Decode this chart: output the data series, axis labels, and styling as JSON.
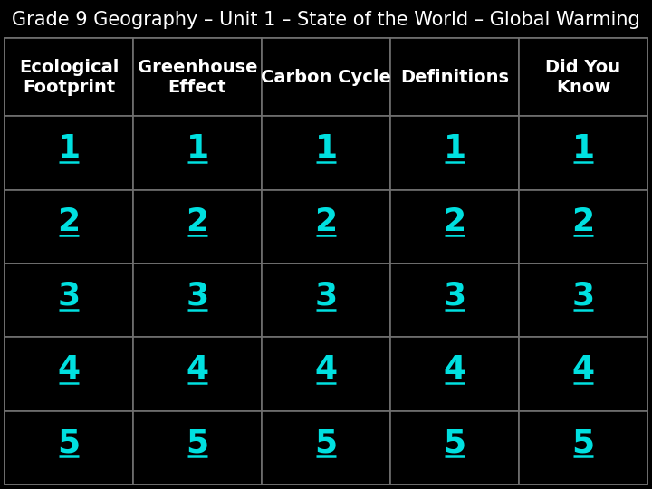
{
  "title": "Grade 9 Geography – Unit 1 – State of the World – Global Warming",
  "title_color": "#ffffff",
  "title_fontsize": 15,
  "background_color": "#000000",
  "table_background": "#000000",
  "header_text_color": "#ffffff",
  "cell_text_color": "#00e0e0",
  "grid_color": "#707070",
  "headers": [
    "Ecological\nFootprint",
    "Greenhouse\nEffect",
    "Carbon Cycle",
    "Definitions",
    "Did You\nKnow"
  ],
  "rows": [
    [
      "1",
      "1",
      "1",
      "1",
      "1"
    ],
    [
      "2",
      "2",
      "2",
      "2",
      "2"
    ],
    [
      "3",
      "3",
      "3",
      "3",
      "3"
    ],
    [
      "4",
      "4",
      "4",
      "4",
      "4"
    ],
    [
      "5",
      "5",
      "5",
      "5",
      "5"
    ]
  ],
  "header_fontsize": 14,
  "cell_fontsize": 26,
  "n_cols": 5,
  "n_rows": 5
}
